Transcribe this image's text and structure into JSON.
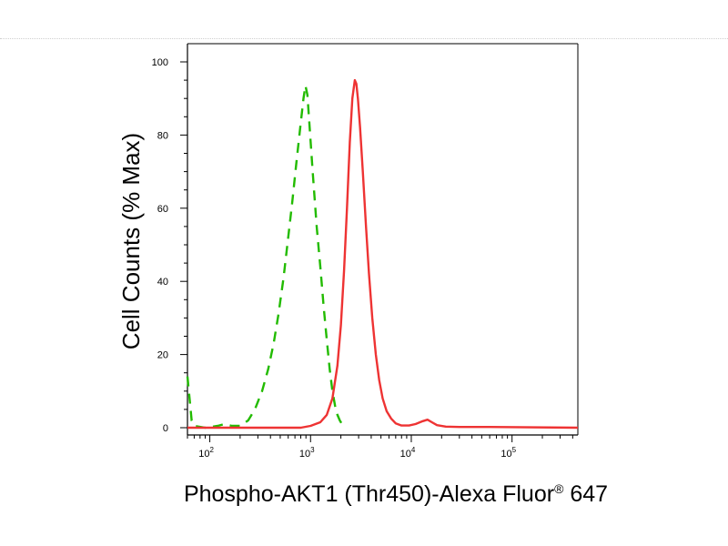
{
  "chart_data": {
    "type": "line",
    "xlabel": "Phospho-AKT1 (Thr450)-Alexa Fluor",
    "xlabel_superscript": "®",
    "xlabel_suffix": " 647",
    "ylabel": "Cell Counts (% Max)",
    "x_scale": "log",
    "xlim": [
      60,
      450000
    ],
    "ylim": [
      0,
      100
    ],
    "y_ticks": [
      0,
      20,
      40,
      60,
      80,
      100
    ],
    "x_ticks": [
      {
        "value": 100,
        "base": "10",
        "exp": "2"
      },
      {
        "value": 1000,
        "base": "10",
        "exp": "3"
      },
      {
        "value": 10000,
        "base": "10",
        "exp": "4"
      },
      {
        "value": 100000,
        "base": "10",
        "exp": "5"
      }
    ],
    "grid": false,
    "legend": "none",
    "series": [
      {
        "color": "#22bb00",
        "style": "dashed",
        "points": [
          [
            60,
            14
          ],
          [
            63,
            8
          ],
          [
            66,
            2
          ],
          [
            70,
            0.5
          ],
          [
            90,
            0
          ],
          [
            120,
            0.5
          ],
          [
            140,
            1
          ],
          [
            165,
            0.5
          ],
          [
            200,
            0.5
          ],
          [
            240,
            2
          ],
          [
            280,
            5
          ],
          [
            330,
            10
          ],
          [
            380,
            16
          ],
          [
            430,
            23
          ],
          [
            480,
            31
          ],
          [
            540,
            41
          ],
          [
            600,
            52
          ],
          [
            660,
            62
          ],
          [
            720,
            72
          ],
          [
            790,
            82
          ],
          [
            850,
            90
          ],
          [
            890,
            93.5
          ],
          [
            930,
            91
          ],
          [
            980,
            82
          ],
          [
            1050,
            70
          ],
          [
            1150,
            55
          ],
          [
            1250,
            44
          ],
          [
            1350,
            33
          ],
          [
            1450,
            24
          ],
          [
            1550,
            16
          ],
          [
            1650,
            10
          ],
          [
            1750,
            6
          ],
          [
            1850,
            3.5
          ],
          [
            1950,
            2
          ],
          [
            2050,
            1
          ],
          [
            2150,
            0.3
          ],
          [
            2250,
            0
          ]
        ]
      },
      {
        "color": "#ee3333",
        "style": "solid",
        "points": [
          [
            60,
            0
          ],
          [
            800,
            0
          ],
          [
            1000,
            0.5
          ],
          [
            1250,
            1.5
          ],
          [
            1450,
            3.5
          ],
          [
            1650,
            8
          ],
          [
            1850,
            17
          ],
          [
            2000,
            28
          ],
          [
            2150,
            43
          ],
          [
            2300,
            60
          ],
          [
            2450,
            78
          ],
          [
            2600,
            90
          ],
          [
            2750,
            95
          ],
          [
            2850,
            94
          ],
          [
            2950,
            90
          ],
          [
            3100,
            82
          ],
          [
            3300,
            70
          ],
          [
            3550,
            55
          ],
          [
            3800,
            42
          ],
          [
            4100,
            30
          ],
          [
            4450,
            20
          ],
          [
            4800,
            13
          ],
          [
            5200,
            8
          ],
          [
            5700,
            4.5
          ],
          [
            6300,
            2.5
          ],
          [
            7000,
            1.2
          ],
          [
            8000,
            0.6
          ],
          [
            9500,
            0.6
          ],
          [
            11000,
            1
          ],
          [
            13000,
            1.8
          ],
          [
            14500,
            2.2
          ],
          [
            16000,
            1.5
          ],
          [
            18000,
            0.7
          ],
          [
            22000,
            0.3
          ],
          [
            30000,
            0.2
          ],
          [
            60000,
            0.2
          ],
          [
            450000,
            0
          ]
        ]
      }
    ]
  }
}
